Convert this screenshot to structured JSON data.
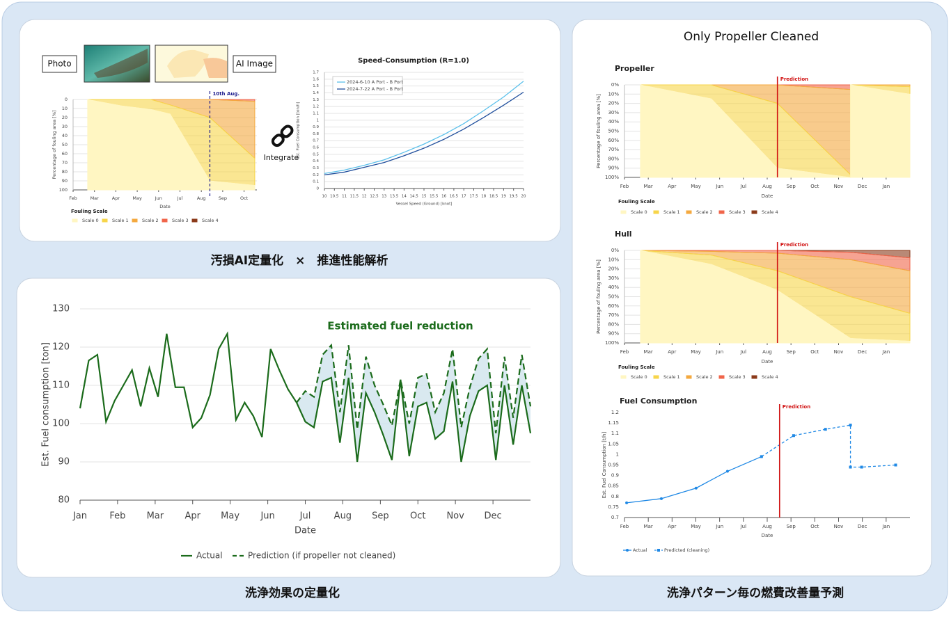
{
  "captions": [
    "汚損AI定量化　×　推進性能解析",
    "洗浄効果の定量化",
    "洗浄パターン毎の燃費改善量予測"
  ],
  "labels": {
    "photo": "Photo",
    "ai_image": "AI Image",
    "integrate": "Integrate"
  },
  "right_panel_title": "Only Propeller Cleaned",
  "chart_data": [
    {
      "type": "area",
      "y_inverted": true,
      "grid": true,
      "x_label": "Date",
      "y_label": "Percentage of fouling area [%]",
      "legend_title": "Fouling Scale",
      "x": [
        0.68,
        2.27,
        3.65,
        4.54,
        6.4,
        8.5
      ],
      "xlim": [
        0,
        8.6
      ],
      "xticks": [
        {
          "value": 0,
          "label": "Feb"
        },
        {
          "value": 1,
          "label": "Mar"
        },
        {
          "value": 2,
          "label": "Apr"
        },
        {
          "value": 3,
          "label": "May"
        },
        {
          "value": 4,
          "label": "Jun"
        },
        {
          "value": 5,
          "label": "Jul"
        },
        {
          "value": 6,
          "label": "Aug"
        },
        {
          "value": 7,
          "label": "Sep"
        },
        {
          "value": 8,
          "label": "Oct"
        }
      ],
      "ylim": [
        0,
        100
      ],
      "yticks": [
        0,
        10,
        20,
        30,
        40,
        50,
        60,
        70,
        80,
        90,
        100
      ],
      "marker_line": {
        "label": "10th Aug.",
        "x": 6.4,
        "color": "#1a1a8c"
      },
      "series": [
        {
          "name": "Scale 0",
          "color": "#fff6c2",
          "values": [
            100,
            93,
            89,
            84,
            10,
            5
          ]
        },
        {
          "name": "Scale 1",
          "color": "#f7d54a",
          "values": [
            0,
            7,
            11,
            10,
            70,
            30
          ]
        },
        {
          "name": "Scale 2",
          "color": "#f4a93f",
          "values": [
            0,
            0,
            0,
            6,
            20,
            63
          ]
        },
        {
          "name": "Scale 3",
          "color": "#f0654a",
          "values": [
            0,
            0,
            0,
            0,
            0,
            2
          ]
        },
        {
          "name": "Scale 4",
          "color": "#8b3a1a",
          "values": [
            0,
            0,
            0,
            0,
            0,
            0
          ]
        }
      ]
    },
    {
      "type": "line",
      "title": "Speed-Consumption (R=1.0)",
      "grid": true,
      "x_label": "Vessel Speed (Ground) [knot]",
      "y_label": "Est. Fuel Consumption [ton/h]",
      "x": [
        10,
        11,
        12,
        13,
        14,
        15,
        16,
        17,
        18,
        19,
        20
      ],
      "xlim": [
        10,
        20
      ],
      "xticks": [
        10,
        10.5,
        11,
        11.5,
        12,
        12.5,
        13,
        13.5,
        14,
        14.5,
        15,
        15.5,
        16,
        16.5,
        17,
        17.5,
        18,
        18.5,
        19,
        19.5,
        20
      ],
      "ylim": [
        0,
        1.7
      ],
      "yticks": [
        0,
        0.1,
        0.2,
        0.3,
        0.4,
        0.5,
        0.6,
        0.7,
        0.8,
        0.9,
        1,
        1.1,
        1.2,
        1.3,
        1.4,
        1.5,
        1.6,
        1.7
      ],
      "series": [
        {
          "name": "2024-6-10 A Port - B Port",
          "color": "#5bc0eb",
          "values": [
            0.22,
            0.27,
            0.34,
            0.42,
            0.53,
            0.65,
            0.79,
            0.95,
            1.14,
            1.34,
            1.57
          ]
        },
        {
          "name": "2024-7-22 A Port - B Port",
          "color": "#1f4e9c",
          "values": [
            0.2,
            0.24,
            0.31,
            0.38,
            0.48,
            0.59,
            0.72,
            0.87,
            1.04,
            1.22,
            1.41
          ]
        }
      ]
    },
    {
      "type": "line",
      "grid": true,
      "x_label": "Date",
      "y_label": "Est. Fuel consumption [ton]",
      "annotation": "Estimated fuel reduction",
      "x": [
        0,
        1,
        2,
        3,
        4,
        5,
        6,
        7,
        8,
        9,
        10,
        11,
        12,
        13,
        14,
        15,
        16,
        17,
        18,
        19,
        20,
        21,
        22,
        23,
        24,
        25,
        26,
        27,
        28,
        29,
        30,
        31,
        32,
        33,
        34,
        35,
        36,
        37,
        38,
        39,
        40,
        41,
        42,
        43,
        44,
        45,
        46,
        47,
        48,
        49,
        50,
        51,
        52
      ],
      "xlim": [
        0,
        52
      ],
      "xticks": [
        {
          "value": 0,
          "label": "Jan"
        },
        {
          "value": 4.33,
          "label": "Feb"
        },
        {
          "value": 8.67,
          "label": "Mar"
        },
        {
          "value": 13,
          "label": "Apr"
        },
        {
          "value": 17.33,
          "label": "May"
        },
        {
          "value": 21.67,
          "label": "Jun"
        },
        {
          "value": 26,
          "label": "Jul"
        },
        {
          "value": 30.33,
          "label": "Aug"
        },
        {
          "value": 34.67,
          "label": "Sep"
        },
        {
          "value": 39,
          "label": "Oct"
        },
        {
          "value": 43.33,
          "label": "Nov"
        },
        {
          "value": 47.67,
          "label": "Dec"
        }
      ],
      "ylim": [
        80,
        130
      ],
      "yticks": [
        80,
        90,
        100,
        110,
        120,
        130
      ],
      "series": [
        {
          "name": "Actual",
          "color": "#1b6b1b",
          "style": "solid",
          "values": [
            104,
            116.5,
            118,
            100.5,
            106,
            110,
            114,
            104.5,
            114.5,
            107,
            123.5,
            109.5,
            109.5,
            99,
            101.5,
            107.5,
            119.5,
            123.5,
            101,
            105.5,
            102,
            96.5,
            119.5,
            114,
            109,
            105.5,
            100.5,
            99,
            111,
            112,
            95,
            112,
            90,
            108,
            103,
            97,
            90.5,
            111.5,
            91.5,
            104.5,
            105.5,
            96,
            98,
            111,
            90,
            102,
            108.5,
            110,
            90.5,
            110,
            94.5,
            110,
            97.5
          ]
        },
        {
          "name": "Prediction (if propeller not cleaned)",
          "color": "#1b6b1b",
          "style": "dashed",
          "values": [
            null,
            null,
            null,
            null,
            null,
            null,
            null,
            null,
            null,
            null,
            null,
            null,
            null,
            null,
            null,
            null,
            null,
            null,
            null,
            null,
            null,
            null,
            null,
            null,
            null,
            105.5,
            108.5,
            107,
            118,
            120.5,
            103,
            120.5,
            98.5,
            117.5,
            110,
            105,
            99.5,
            111.5,
            100,
            112,
            113,
            103,
            108,
            119.5,
            99,
            109.5,
            117,
            119.5,
            97.5,
            117.5,
            101.5,
            118,
            104.5
          ]
        }
      ]
    },
    {
      "type": "area",
      "title": "Propeller",
      "y_inverted": true,
      "grid": true,
      "x_label": "Date",
      "y_label": "Percentage of fouling area [%]",
      "legend_title": "Fouling Scale",
      "x": [
        0.67,
        3.65,
        6.43,
        9.5,
        9.5,
        12
      ],
      "xlim": [
        0,
        12
      ],
      "xticks": [
        {
          "value": 0,
          "label": "Feb"
        },
        {
          "value": 1,
          "label": "Mar"
        },
        {
          "value": 2,
          "label": "Apr"
        },
        {
          "value": 3,
          "label": "May"
        },
        {
          "value": 4,
          "label": "Jun"
        },
        {
          "value": 5,
          "label": "Jul"
        },
        {
          "value": 6,
          "label": "Aug"
        },
        {
          "value": 7,
          "label": "Sep"
        },
        {
          "value": 8,
          "label": "Oct"
        },
        {
          "value": 9,
          "label": "Nov"
        },
        {
          "value": 10,
          "label": "Dec"
        },
        {
          "value": 11,
          "label": "Jan"
        }
      ],
      "ylim": [
        0,
        100
      ],
      "yticks": [
        {
          "value": 0,
          "label": "0%"
        },
        {
          "value": 10,
          "label": "10%"
        },
        {
          "value": 20,
          "label": "20%"
        },
        {
          "value": 30,
          "label": "30%"
        },
        {
          "value": 40,
          "label": "40%"
        },
        {
          "value": 50,
          "label": "50%"
        },
        {
          "value": 60,
          "label": "60%"
        },
        {
          "value": 70,
          "label": "70%"
        },
        {
          "value": 80,
          "label": "80%"
        },
        {
          "value": 90,
          "label": "90%"
        },
        {
          "value": 100,
          "label": "100%"
        }
      ],
      "marker_line": {
        "label": "Prediction",
        "x": 6.43,
        "color": "#d01010"
      },
      "series": [
        {
          "name": "Scale 0",
          "color": "#fff6c2",
          "values": [
            100,
            85,
            10,
            0,
            100,
            90
          ]
        },
        {
          "name": "Scale 1",
          "color": "#f7d54a",
          "values": [
            0,
            15,
            70,
            3,
            0,
            8
          ]
        },
        {
          "name": "Scale 2",
          "color": "#f4a93f",
          "values": [
            0,
            0,
            20,
            92,
            0,
            2
          ]
        },
        {
          "name": "Scale 3",
          "color": "#f0654a",
          "values": [
            0,
            0,
            0,
            5,
            0,
            0
          ]
        },
        {
          "name": "Scale 4",
          "color": "#8b3a1a",
          "values": [
            0,
            0,
            0,
            0,
            0,
            0
          ]
        }
      ]
    },
    {
      "type": "area",
      "title": "Hull",
      "y_inverted": true,
      "grid": true,
      "x_label": "Date",
      "y_label": "Percentage of fouling area [%]",
      "legend_title": "Fouling Scale",
      "x": [
        0.67,
        3.65,
        6.43,
        9.5,
        12
      ],
      "xlim": [
        0,
        12
      ],
      "xticks": [
        {
          "value": 0,
          "label": "Feb"
        },
        {
          "value": 1,
          "label": "Mar"
        },
        {
          "value": 2,
          "label": "Apr"
        },
        {
          "value": 3,
          "label": "May"
        },
        {
          "value": 4,
          "label": "Jun"
        },
        {
          "value": 5,
          "label": "Jul"
        },
        {
          "value": 6,
          "label": "Aug"
        },
        {
          "value": 7,
          "label": "Sep"
        },
        {
          "value": 8,
          "label": "Oct"
        },
        {
          "value": 9,
          "label": "Nov"
        },
        {
          "value": 10,
          "label": "Dec"
        },
        {
          "value": 11,
          "label": "Jan"
        }
      ],
      "ylim": [
        0,
        100
      ],
      "yticks": [
        {
          "value": 0,
          "label": "0%"
        },
        {
          "value": 10,
          "label": "10%"
        },
        {
          "value": 20,
          "label": "20%"
        },
        {
          "value": 30,
          "label": "30%"
        },
        {
          "value": 40,
          "label": "40%"
        },
        {
          "value": 50,
          "label": "50%"
        },
        {
          "value": 60,
          "label": "60%"
        },
        {
          "value": 70,
          "label": "70%"
        },
        {
          "value": 80,
          "label": "80%"
        },
        {
          "value": 90,
          "label": "90%"
        },
        {
          "value": 100,
          "label": "100%"
        }
      ],
      "marker_line": {
        "label": "Prediction",
        "x": 6.43,
        "color": "#d01010"
      },
      "series": [
        {
          "name": "Scale 0",
          "color": "#fff6c2",
          "values": [
            100,
            85,
            57,
            5,
            2
          ]
        },
        {
          "name": "Scale 1",
          "color": "#f7d54a",
          "values": [
            0,
            10,
            21,
            45,
            30
          ]
        },
        {
          "name": "Scale 2",
          "color": "#f4a93f",
          "values": [
            0,
            4,
            19,
            40,
            46
          ]
        },
        {
          "name": "Scale 3",
          "color": "#f0654a",
          "values": [
            0,
            1,
            3,
            8,
            14
          ]
        },
        {
          "name": "Scale 4",
          "color": "#8b3a1a",
          "values": [
            0,
            0,
            0,
            2,
            8
          ]
        }
      ]
    },
    {
      "type": "line",
      "title": "Fuel Consumption",
      "grid": false,
      "x_label": "Date",
      "y_label": "Est. Fuel Consumption [t/h]",
      "x": [
        0.09,
        1.55,
        3.01,
        4.33,
        5.76,
        7.11,
        8.45,
        9.5,
        9.5,
        9.97,
        11.4
      ],
      "xlim": [
        0,
        12
      ],
      "xticks": [
        {
          "value": 0,
          "label": "Feb"
        },
        {
          "value": 1,
          "label": "Mar"
        },
        {
          "value": 2,
          "label": "Apr"
        },
        {
          "value": 3,
          "label": "May"
        },
        {
          "value": 4,
          "label": "Jun"
        },
        {
          "value": 5,
          "label": "Jul"
        },
        {
          "value": 6,
          "label": "Aug"
        },
        {
          "value": 7,
          "label": "Sep"
        },
        {
          "value": 8,
          "label": "Oct"
        },
        {
          "value": 9,
          "label": "Nov"
        },
        {
          "value": 10,
          "label": "Dec"
        },
        {
          "value": 11,
          "label": "Jan"
        }
      ],
      "ylim": [
        0.7,
        1.2
      ],
      "yticks": [
        0.7,
        0.75,
        0.8,
        0.85,
        0.9,
        0.95,
        1,
        1.05,
        1.1,
        1.15,
        1.2
      ],
      "marker_line": {
        "label": "Prediction",
        "x": 6.52,
        "color": "#d01010"
      },
      "series": [
        {
          "name": "Actual",
          "color": "#1e88e5",
          "style": "solid",
          "marker": "circle",
          "values": [
            0.77,
            0.79,
            0.84,
            0.92,
            0.99,
            null,
            null,
            null,
            null,
            null,
            null
          ]
        },
        {
          "name": "Predicted (cleaning)",
          "color": "#1e88e5",
          "style": "dashed",
          "marker": "square",
          "values": [
            null,
            null,
            null,
            null,
            0.99,
            1.09,
            1.12,
            1.14,
            0.94,
            0.94,
            0.95
          ]
        }
      ]
    }
  ]
}
